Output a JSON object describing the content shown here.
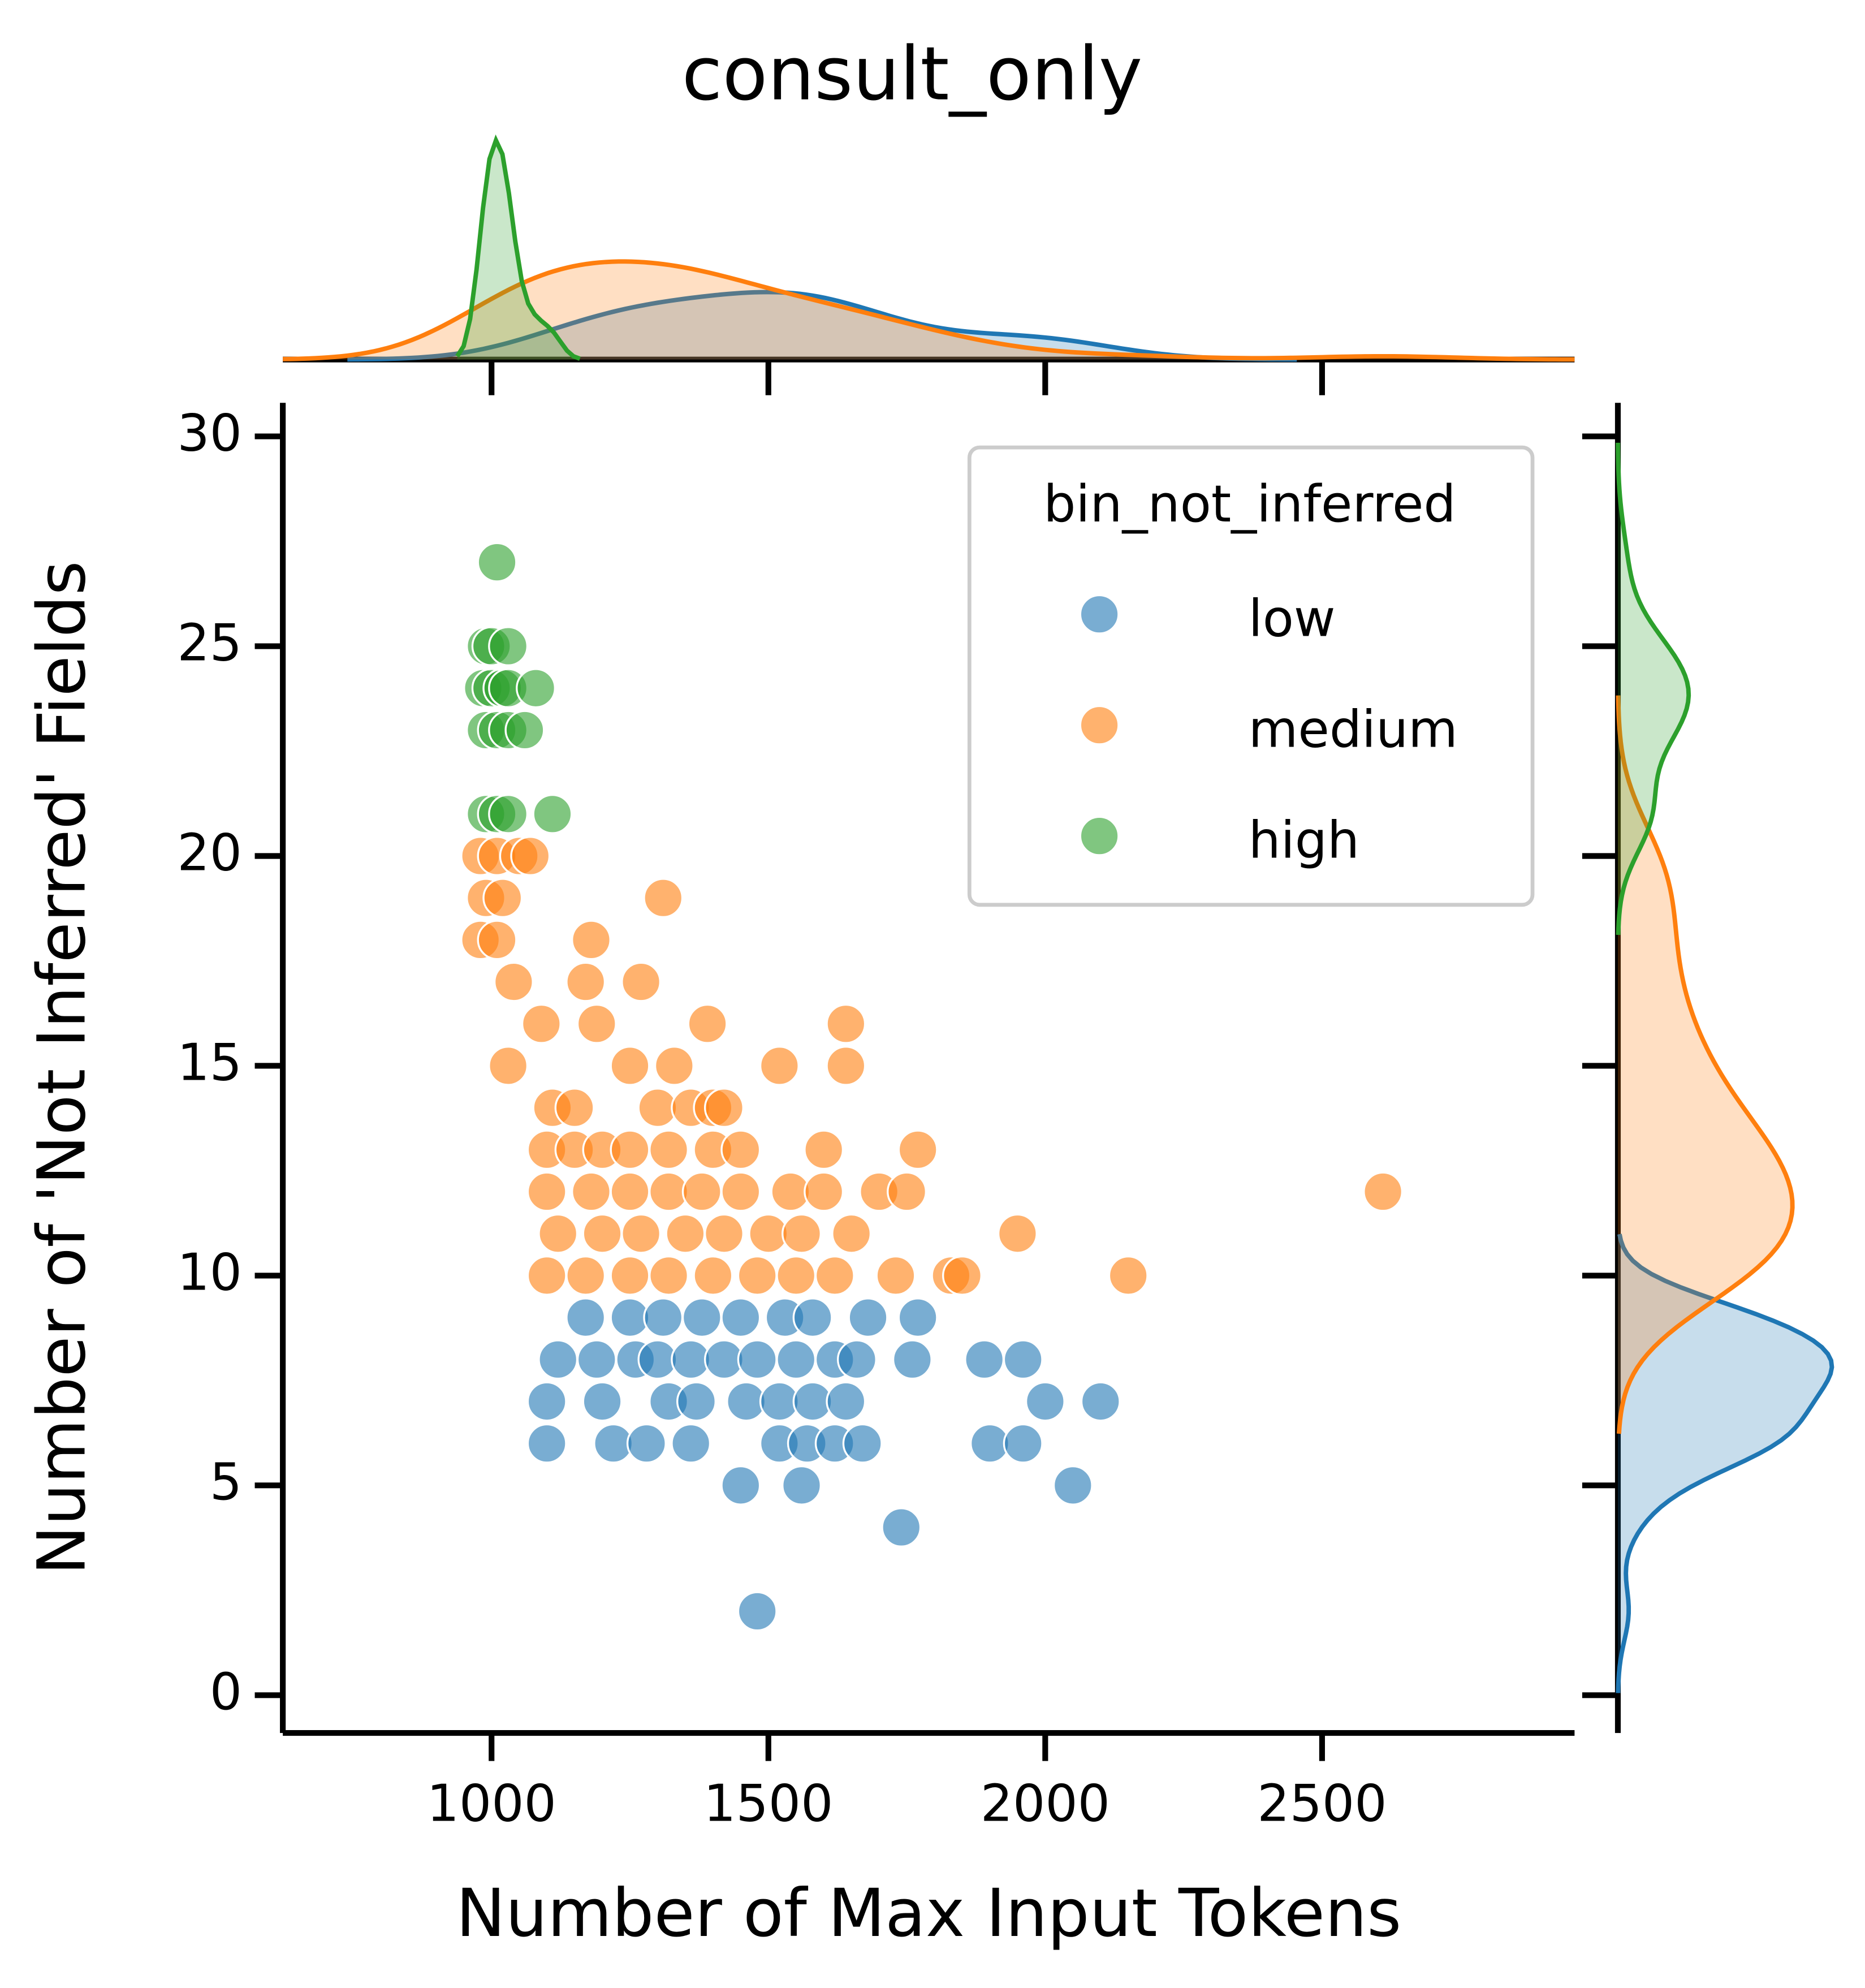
{
  "chart_data": {
    "type": "scatter",
    "title": "consult_only",
    "x_label": "Number of Max Input Tokens",
    "y_label": "Number of 'Not Inferred' Fields",
    "legend_title": "bin_not_inferred",
    "legend_position": "upper right",
    "marginal": "kde",
    "xlim": [
      623,
      2956
    ],
    "xticks": [
      1000,
      1500,
      2000,
      2500
    ],
    "ylim": [
      -0.9,
      30.8
    ],
    "yticks": [
      0,
      5,
      10,
      15,
      20,
      25,
      30
    ],
    "series": [
      {
        "name": "low",
        "color": "#1f77b4",
        "x": [
          1170,
          1250,
          1310,
          1380,
          1450,
          1530,
          1580,
          1680,
          1770,
          1120,
          1190,
          1260,
          1300,
          1360,
          1420,
          1480,
          1550,
          1620,
          1660,
          1760,
          1890,
          1960,
          1100,
          1200,
          1320,
          1370,
          1460,
          1520,
          1580,
          1640,
          2000,
          2100,
          1100,
          1220,
          1280,
          1360,
          1520,
          1570,
          1620,
          1670,
          1900,
          1960,
          1450,
          1560,
          2050,
          1740,
          1480
        ],
        "values": [
          9,
          9,
          9,
          9,
          9,
          9,
          9,
          9,
          9,
          8,
          8,
          8,
          8,
          8,
          8,
          8,
          8,
          8,
          8,
          8,
          8,
          8,
          7,
          7,
          7,
          7,
          7,
          7,
          7,
          7,
          7,
          7,
          6,
          6,
          6,
          6,
          6,
          6,
          6,
          6,
          6,
          6,
          5,
          5,
          5,
          4,
          2
        ]
      },
      {
        "name": "medium",
        "color": "#ff7f0e",
        "x": [
          980,
          1010,
          1050,
          1070,
          990,
          1020,
          980,
          1010,
          1040,
          1090,
          1030,
          1180,
          1170,
          1190,
          1270,
          1310,
          1390,
          1640,
          1250,
          1330,
          1520,
          1640,
          1110,
          1150,
          1300,
          1360,
          1400,
          1420,
          1100,
          1150,
          1200,
          1250,
          1320,
          1400,
          1450,
          1600,
          1770,
          1100,
          1180,
          1250,
          1320,
          1380,
          1450,
          1540,
          1600,
          1700,
          1750,
          2610,
          1120,
          1200,
          1270,
          1350,
          1420,
          1500,
          1560,
          1650,
          1950,
          1100,
          1170,
          1250,
          1320,
          1400,
          1480,
          1550,
          1620,
          1730,
          1830,
          1850,
          2150
        ],
        "values": [
          20,
          20,
          20,
          20,
          19,
          19,
          18,
          18,
          17,
          16,
          15,
          18,
          17,
          16,
          17,
          19,
          16,
          16,
          15,
          15,
          15,
          15,
          14,
          14,
          14,
          14,
          14,
          14,
          13,
          13,
          13,
          13,
          13,
          13,
          13,
          13,
          13,
          12,
          12,
          12,
          12,
          12,
          12,
          12,
          12,
          12,
          12,
          12,
          11,
          11,
          11,
          11,
          11,
          11,
          11,
          11,
          11,
          10,
          10,
          10,
          10,
          10,
          10,
          10,
          10,
          10,
          10,
          10,
          10
        ]
      },
      {
        "name": "high",
        "color": "#2ca02c",
        "x": [
          1010,
          990,
          1000,
          1030,
          985,
          1000,
          1020,
          1030,
          1080,
          990,
          1010,
          1030,
          1060,
          990,
          1010,
          1030,
          1110
        ],
        "values": [
          27,
          25,
          25,
          25,
          24,
          24,
          24,
          24,
          24,
          23,
          23,
          23,
          23,
          21,
          21,
          21,
          21
        ]
      }
    ]
  }
}
